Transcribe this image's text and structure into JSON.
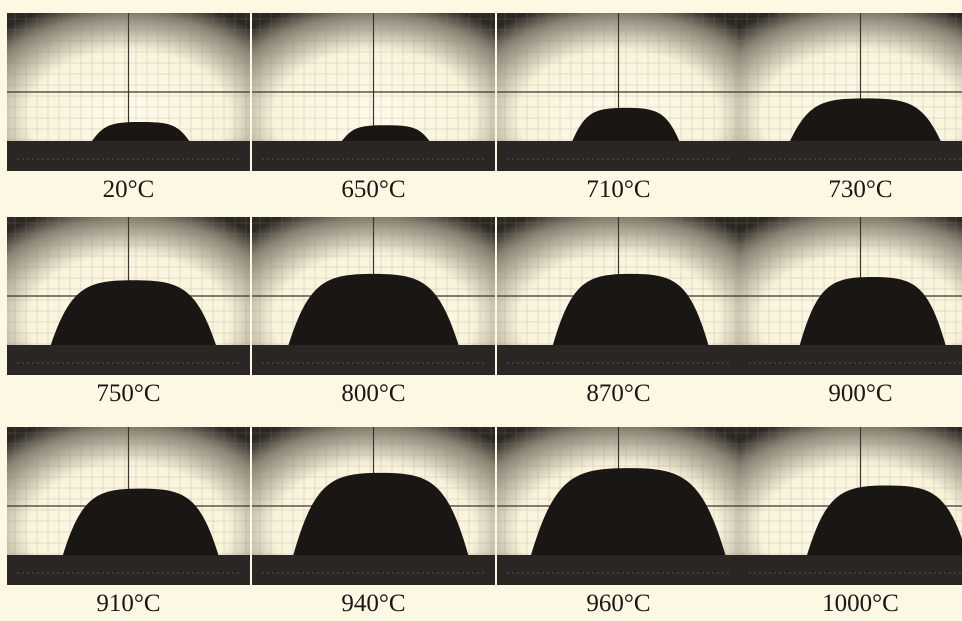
{
  "colors": {
    "background": "#fdf8e4",
    "backlight": "#faf3dc",
    "drop": "#1a1614",
    "substrate": "#2a2623",
    "grid_line": "#8c8578"
  },
  "panels": [
    {
      "label": "20°C",
      "drop_w": 0.4,
      "drop_h": 0.12,
      "drop_cx": 0.55
    },
    {
      "label": "650°C",
      "drop_w": 0.36,
      "drop_h": 0.1,
      "drop_cx": 0.55
    },
    {
      "label": "710°C",
      "drop_w": 0.44,
      "drop_h": 0.21,
      "drop_cx": 0.53
    },
    {
      "label": "730°C",
      "drop_w": 0.62,
      "drop_h": 0.27,
      "drop_cx": 0.52
    },
    {
      "label": "750°C",
      "drop_w": 0.68,
      "drop_h": 0.41,
      "drop_cx": 0.52
    },
    {
      "label": "800°C",
      "drop_w": 0.7,
      "drop_h": 0.45,
      "drop_cx": 0.5
    },
    {
      "label": "870°C",
      "drop_w": 0.64,
      "drop_h": 0.45,
      "drop_cx": 0.55
    },
    {
      "label": "900°C",
      "drop_w": 0.6,
      "drop_h": 0.43,
      "drop_cx": 0.55
    },
    {
      "label": "910°C",
      "drop_w": 0.64,
      "drop_h": 0.42,
      "drop_cx": 0.55
    },
    {
      "label": "940°C",
      "drop_w": 0.72,
      "drop_h": 0.52,
      "drop_cx": 0.53
    },
    {
      "label": "960°C",
      "drop_w": 0.8,
      "drop_h": 0.55,
      "drop_cx": 0.54
    },
    {
      "label": "1000°C",
      "drop_w": 0.66,
      "drop_h": 0.44,
      "drop_cx": 0.61
    }
  ]
}
